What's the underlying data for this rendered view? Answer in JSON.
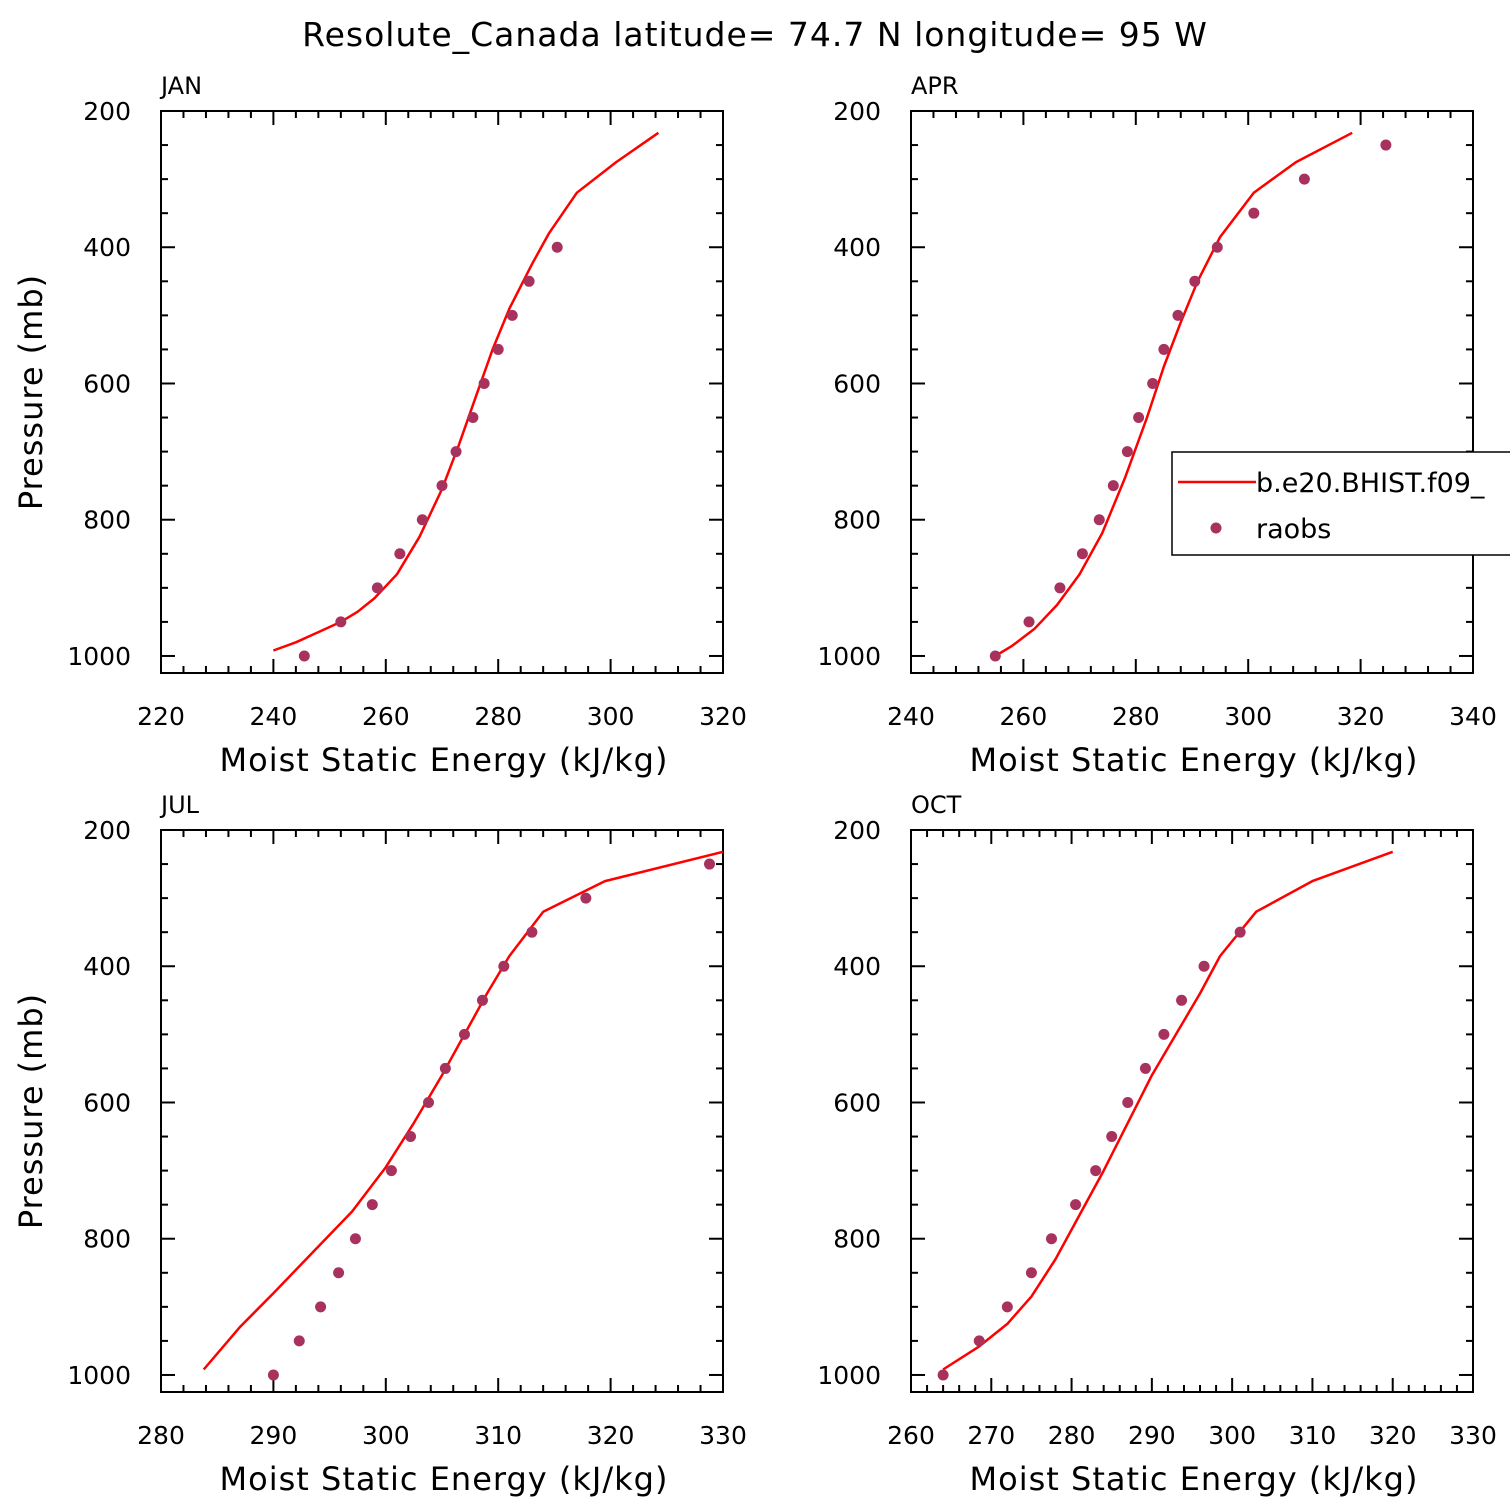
{
  "title": "Resolute_Canada  latitude= 74.7 N longitude= 95 W",
  "colors": {
    "model": "#ff0000",
    "obs": "#a8325e",
    "axis": "#000000"
  },
  "legend": {
    "model_label": "b.e20.BHIST.f09_",
    "obs_label": "raobs",
    "panel": "APR",
    "placement": "right-middle"
  },
  "chart_data": [
    {
      "type": "line",
      "panel": "JAN",
      "xlabel": "Moist Static Energy (kJ/kg)",
      "ylabel": "Pressure (mb)",
      "xlim": [
        220,
        320
      ],
      "ylim": [
        1025,
        200
      ],
      "xticks": [
        220,
        240,
        260,
        280,
        300,
        320
      ],
      "yticks": [
        200,
        400,
        600,
        800,
        1000
      ],
      "model": {
        "x": [
          240,
          244,
          248,
          252,
          255,
          258,
          262,
          266,
          270,
          273,
          276,
          279,
          282,
          286,
          289,
          294,
          301,
          308.5
        ],
        "p": [
          992,
          980,
          965,
          950,
          935,
          915,
          880,
          825,
          755,
          690,
          620,
          550,
          490,
          425,
          380,
          320,
          275,
          232
        ]
      },
      "obs": {
        "x": [
          245.5,
          252,
          258.5,
          262.5,
          266.5,
          270,
          272.5,
          275.5,
          277.5,
          280,
          282.5,
          285.5,
          290.5
        ],
        "p": [
          1000,
          950,
          900,
          850,
          800,
          750,
          700,
          650,
          600,
          550,
          500,
          450,
          400
        ]
      }
    },
    {
      "type": "line",
      "panel": "APR",
      "xlabel": "Moist Static Energy (kJ/kg)",
      "ylabel": "",
      "xlim": [
        240,
        340
      ],
      "ylim": [
        1025,
        200
      ],
      "xticks": [
        240,
        260,
        280,
        300,
        320,
        340
      ],
      "yticks": [
        200,
        400,
        600,
        800,
        1000
      ],
      "model": {
        "x": [
          255,
          258,
          262,
          266,
          270,
          274,
          278,
          282,
          285,
          288,
          291,
          295,
          301,
          308.5,
          318.5
        ],
        "p": [
          1000,
          985,
          960,
          925,
          880,
          820,
          740,
          650,
          575,
          510,
          450,
          385,
          320,
          275,
          232
        ]
      },
      "obs": {
        "x": [
          255,
          261,
          266.5,
          270.5,
          273.5,
          276,
          278.5,
          280.5,
          283,
          285,
          287.5,
          290.5,
          294.5,
          301,
          310,
          324.5
        ],
        "p": [
          1000,
          950,
          900,
          850,
          800,
          750,
          700,
          650,
          600,
          550,
          500,
          450,
          400,
          350,
          300,
          250
        ]
      }
    },
    {
      "type": "line",
      "panel": "JUL",
      "xlabel": "Moist Static Energy (kJ/kg)",
      "ylabel": "Pressure (mb)",
      "xlim": [
        280,
        330
      ],
      "ylim": [
        1025,
        200
      ],
      "xticks": [
        280,
        290,
        300,
        310,
        320,
        330
      ],
      "yticks": [
        200,
        400,
        600,
        800,
        1000
      ],
      "model": {
        "x": [
          283.8,
          287,
          290,
          293.5,
          297,
          300,
          302.5,
          305,
          307,
          309,
          311,
          314,
          319.5,
          330
        ],
        "p": [
          992,
          930,
          880,
          820,
          760,
          695,
          630,
          560,
          500,
          440,
          385,
          320,
          275,
          232
        ]
      },
      "obs": {
        "x": [
          290,
          292.3,
          294.2,
          295.8,
          297.3,
          298.8,
          300.5,
          302.2,
          303.8,
          305.3,
          307,
          308.6,
          310.5,
          313,
          317.8,
          328.8
        ],
        "p": [
          1000,
          950,
          900,
          850,
          800,
          750,
          700,
          650,
          600,
          550,
          500,
          450,
          400,
          350,
          300,
          250
        ]
      }
    },
    {
      "type": "line",
      "panel": "OCT",
      "xlabel": "Moist Static Energy (kJ/kg)",
      "ylabel": "",
      "xlim": [
        260,
        330
      ],
      "ylim": [
        1025,
        200
      ],
      "xticks": [
        260,
        270,
        280,
        290,
        300,
        310,
        320,
        330
      ],
      "yticks": [
        200,
        400,
        600,
        800,
        1000
      ],
      "model": {
        "x": [
          264,
          268.5,
          272,
          275,
          278,
          281,
          284,
          287,
          290,
          293,
          296,
          298.5,
          303,
          310,
          320
        ],
        "p": [
          992,
          958,
          925,
          885,
          830,
          765,
          700,
          630,
          560,
          500,
          440,
          385,
          320,
          275,
          232
        ]
      },
      "obs": {
        "x": [
          264,
          268.5,
          272,
          275,
          277.5,
          280.5,
          283,
          285,
          287,
          289.2,
          291.5,
          293.7,
          296.5,
          301
        ],
        "p": [
          1000,
          950,
          900,
          850,
          800,
          750,
          700,
          650,
          600,
          550,
          500,
          450,
          400,
          350
        ]
      }
    }
  ]
}
